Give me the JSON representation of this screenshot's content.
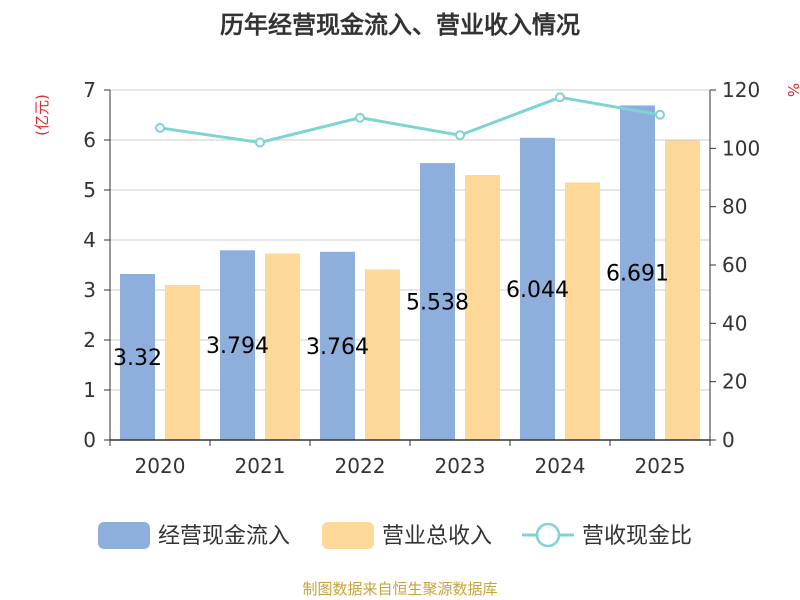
{
  "chart_data": {
    "type": "bar",
    "title": "历年经营现金流入、营业收入情况",
    "categories": [
      "2020",
      "2021",
      "2022",
      "2023",
      "2024",
      "2025"
    ],
    "series": [
      {
        "name": "经营现金流入",
        "type": "bar",
        "axis": "left",
        "color": "#8eaedc",
        "values": [
          3.32,
          3.794,
          3.764,
          5.538,
          6.044,
          6.691
        ],
        "labels": [
          "3.32",
          "3.794",
          "3.764",
          "5.538",
          "6.044",
          "6.691"
        ]
      },
      {
        "name": "营业总收入",
        "type": "bar",
        "axis": "left",
        "color": "#fed898",
        "values": [
          3.1,
          3.73,
          3.41,
          5.3,
          5.15,
          5.99
        ]
      },
      {
        "name": "营收现金比",
        "type": "line",
        "axis": "right",
        "color": "#7fd3d3",
        "values": [
          107,
          102,
          110.5,
          104.5,
          117.5,
          111.5
        ]
      }
    ],
    "y_left": {
      "label": "(亿元)",
      "min": 0,
      "max": 7,
      "ticks": [
        0,
        1,
        2,
        3,
        4,
        5,
        6,
        7
      ]
    },
    "y_right": {
      "label": "%",
      "min": 0,
      "max": 120,
      "ticks": [
        0,
        20,
        40,
        60,
        80,
        100,
        120
      ]
    },
    "grid": true,
    "legend_position": "bottom"
  },
  "footer": "制图数据来自恒生聚源数据库"
}
